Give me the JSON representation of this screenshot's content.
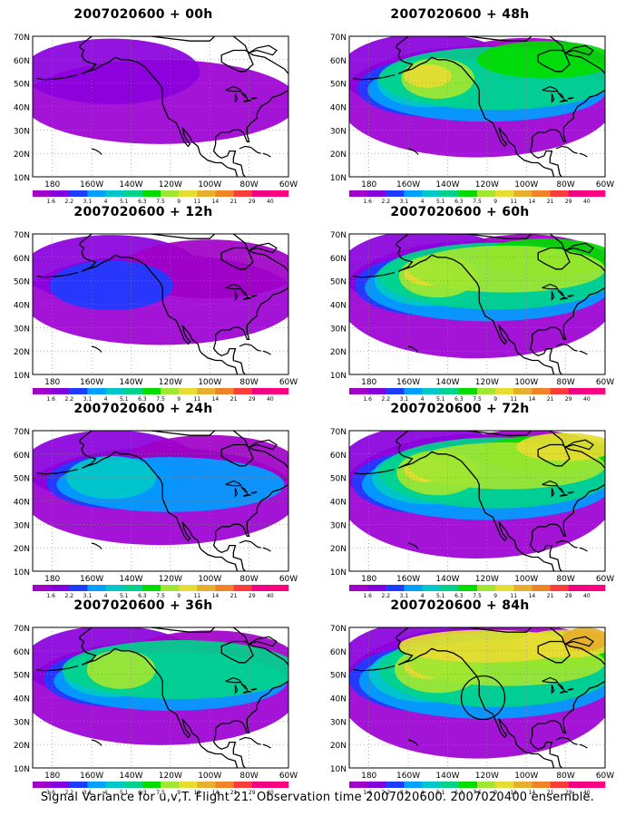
{
  "panels": [
    {
      "title": "2007020600 + 00h",
      "lead": 0
    },
    {
      "title": "2007020600 + 48h",
      "lead": 48
    },
    {
      "title": "2007020600 + 12h",
      "lead": 12
    },
    {
      "title": "2007020600 + 60h",
      "lead": 60
    },
    {
      "title": "2007020600 + 24h",
      "lead": 24
    },
    {
      "title": "2007020600 + 72h",
      "lead": 72
    },
    {
      "title": "2007020600 + 36h",
      "lead": 36
    },
    {
      "title": "2007020600 + 84h",
      "lead": 84
    }
  ],
  "lat_labels": [
    "70N",
    "60N",
    "50N",
    "40N",
    "30N",
    "20N",
    "10N"
  ],
  "lon_labels": [
    "180",
    "160W",
    "140W",
    "120W",
    "100W",
    "80W",
    "60W"
  ],
  "colorbar": {
    "labels": [
      "1.6",
      "2.2",
      "3.1",
      "4",
      "5.1",
      "6.3",
      "7.5",
      "9",
      "11",
      "14",
      "21",
      "29",
      "40"
    ],
    "colors": [
      "#a000c8",
      "#8200dc",
      "#1e3cff",
      "#00a0ff",
      "#00c8c8",
      "#00d28c",
      "#00dc00",
      "#a0e632",
      "#e6dc32",
      "#e6af2d",
      "#f08228",
      "#fa3c3c",
      "#f00082",
      "#ff0080"
    ]
  },
  "footer": "Signal Variance for u,v,T. Flight 21. Observation time 2007020600. 2007020400 ensemble."
}
